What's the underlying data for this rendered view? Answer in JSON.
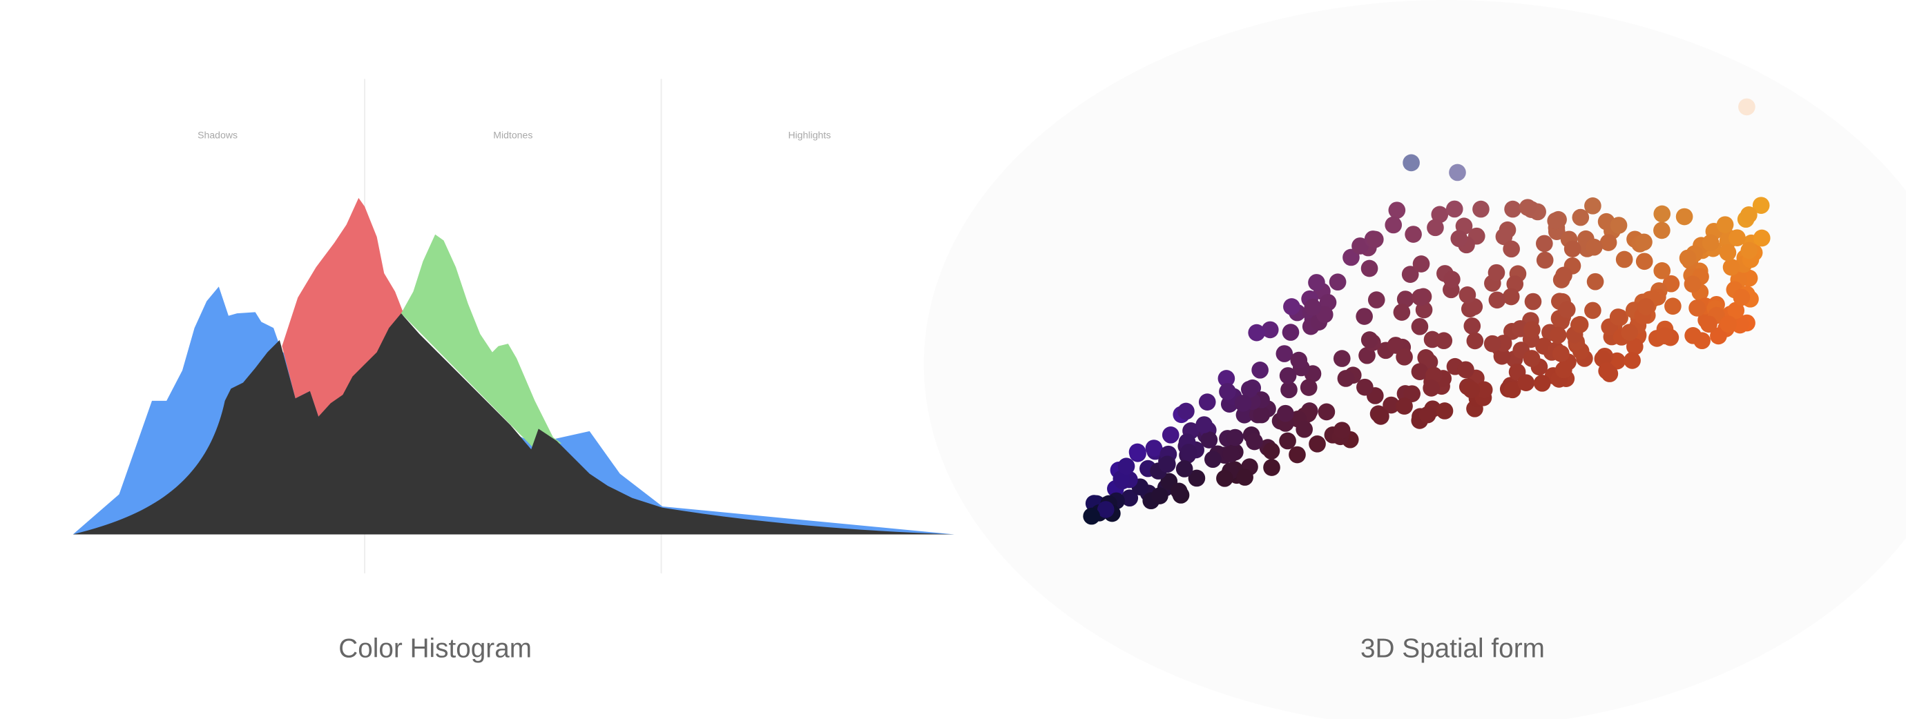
{
  "zones": {
    "shadows": "Shadows",
    "midtones": "Midtones",
    "highlights": "Highlights"
  },
  "captions": {
    "histogram": "Color Histogram",
    "spatial": "3D Spatial form"
  }
}
